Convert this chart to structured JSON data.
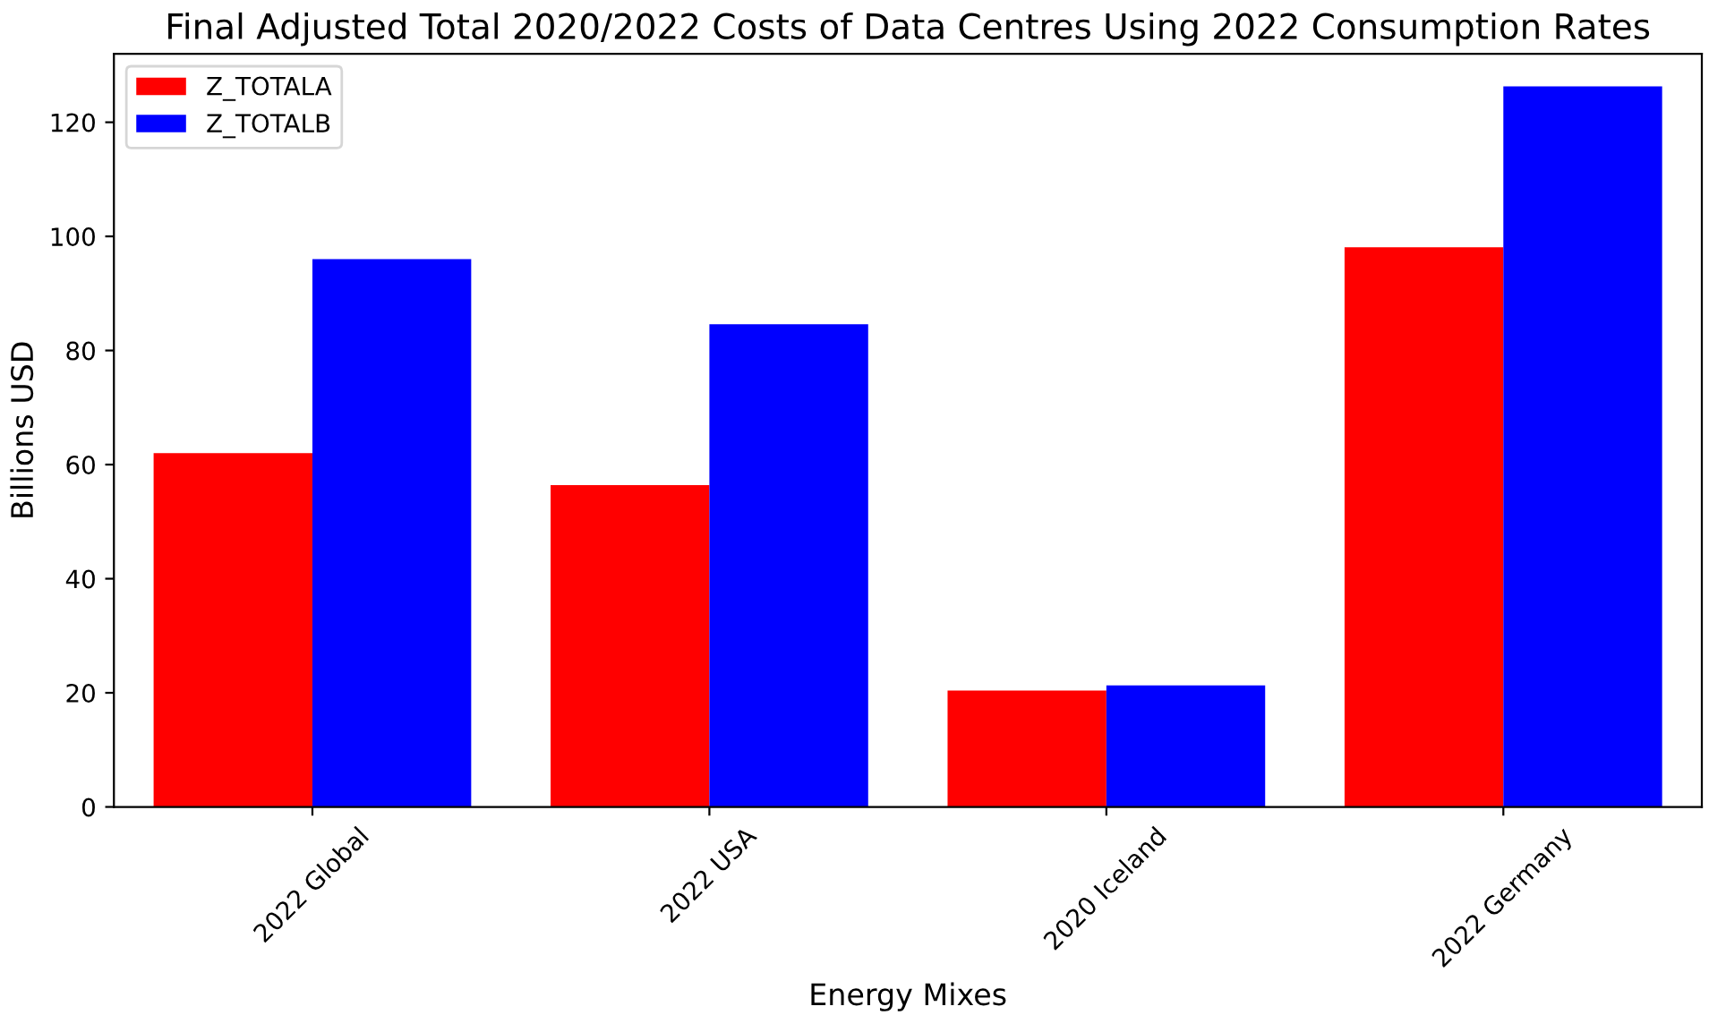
{
  "chart_data": {
    "type": "bar",
    "title": "Final Adjusted Total 2020/2022 Costs of Data Centres Using 2022 Consumption Rates",
    "xlabel": "Energy Mixes",
    "ylabel": "Billions USD",
    "categories": [
      "2022 Global",
      "2022 USA",
      "2020 Iceland",
      "2022 Germany"
    ],
    "series": [
      {
        "name": "Z_TOTALA",
        "color": "#ff0000",
        "values": [
          62.0,
          56.4,
          20.4,
          98.1
        ]
      },
      {
        "name": "Z_TOTALB",
        "color": "#0000ff",
        "values": [
          96.0,
          84.6,
          21.3,
          126.3
        ]
      }
    ],
    "ylim": [
      0,
      132
    ],
    "yticks": [
      0,
      20,
      40,
      60,
      80,
      100,
      120
    ],
    "legend": "top left",
    "grid": false
  }
}
